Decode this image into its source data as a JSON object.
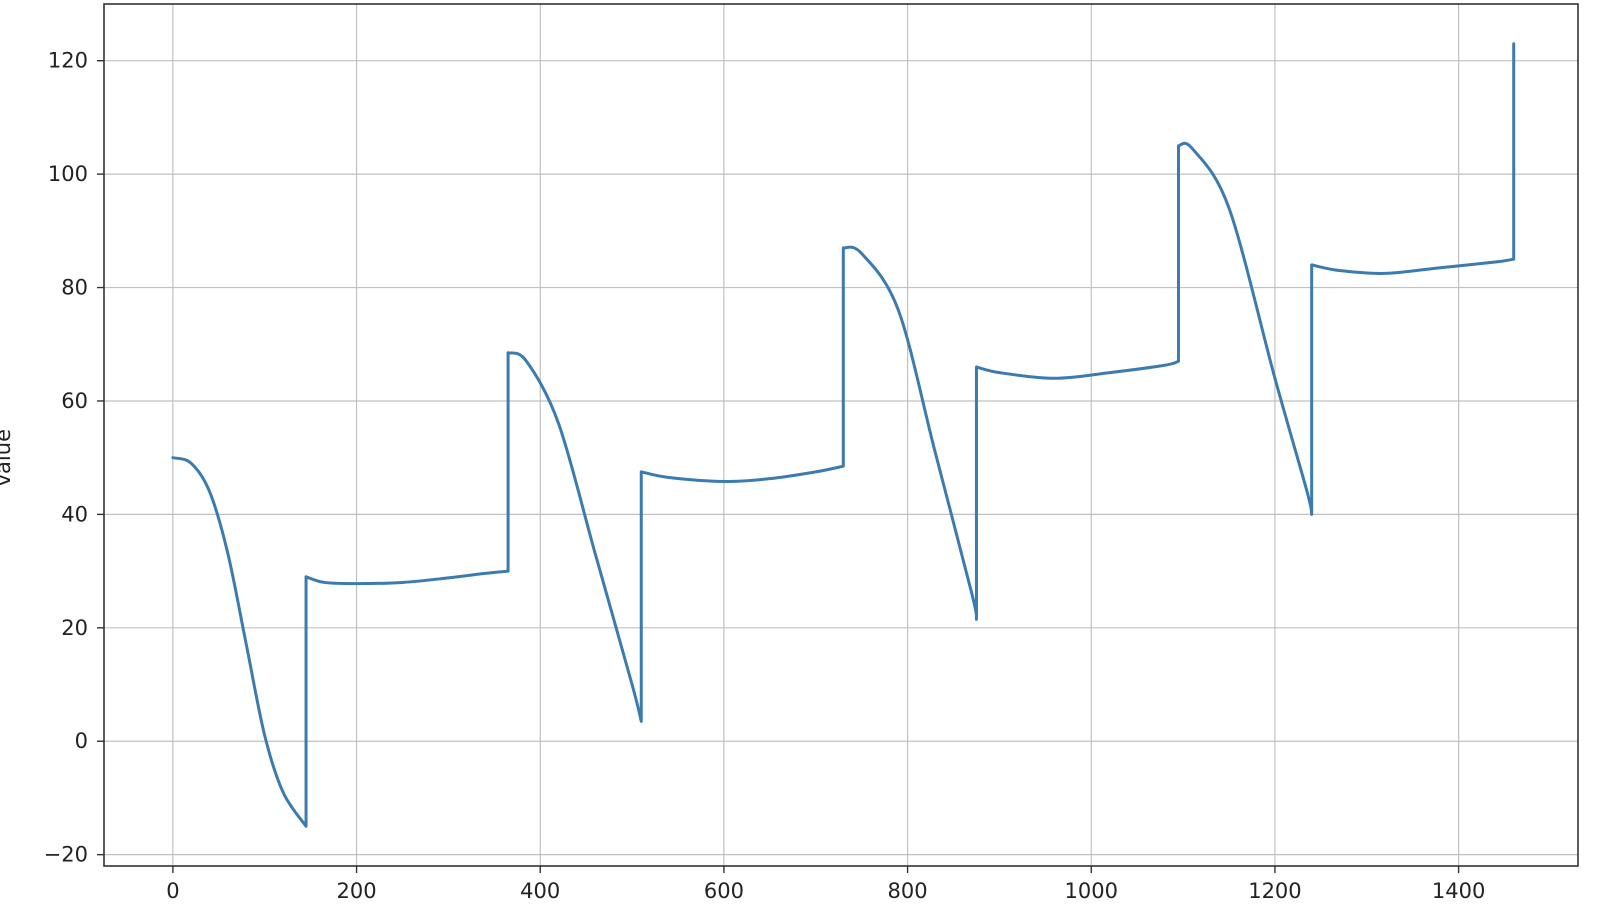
{
  "chart_data": {
    "type": "line",
    "title": "",
    "xlabel": "",
    "ylabel": "value",
    "xlim": [
      -75,
      1530
    ],
    "ylim": [
      -22,
      130
    ],
    "xticks": [
      0,
      200,
      400,
      600,
      800,
      1000,
      1200,
      1400
    ],
    "yticks": [
      -20,
      0,
      20,
      40,
      60,
      80,
      100,
      120
    ],
    "grid": true,
    "legend": "none",
    "colors": {
      "line": "#3b7bb0",
      "grid": "#c0c0c0",
      "frame": "#333333"
    },
    "series": [
      {
        "x": [
          0,
          20,
          40,
          60,
          80,
          100,
          120,
          145,
          145,
          165,
          200,
          250,
          300,
          340,
          365,
          365,
          385,
          420,
          460,
          500,
          510,
          510,
          540,
          600,
          650,
          700,
          730,
          730,
          750,
          790,
          830,
          870,
          875,
          875,
          900,
          960,
          1020,
          1080,
          1095,
          1095,
          1110,
          1150,
          1200,
          1235,
          1240,
          1240,
          1270,
          1320,
          1380,
          1440,
          1460,
          1460
        ],
        "y": [
          50,
          49,
          44,
          33,
          17,
          1,
          -9,
          -15,
          29,
          28,
          27.8,
          28,
          28.8,
          29.6,
          30,
          68.5,
          67,
          56,
          33,
          10,
          3.5,
          47.5,
          46.5,
          45.8,
          46.3,
          47.5,
          48.5,
          87,
          86,
          76,
          51,
          26,
          21.5,
          66,
          65,
          64,
          65,
          66.3,
          67,
          105,
          104.5,
          94,
          64,
          44,
          40,
          84,
          83,
          82.5,
          83.5,
          84.5,
          85,
          123
        ]
      }
    ]
  }
}
